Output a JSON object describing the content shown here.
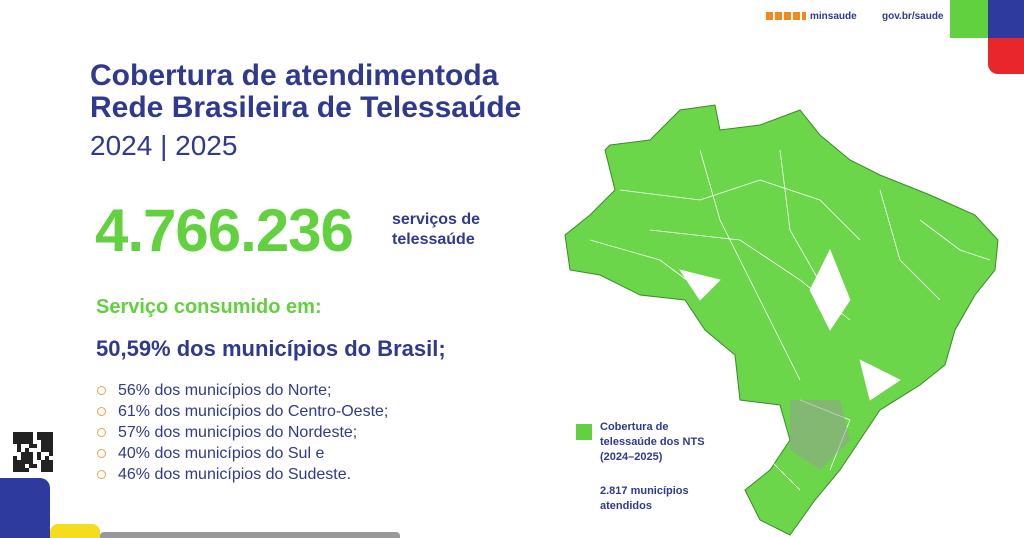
{
  "header": {
    "brand": "minsaude",
    "gov": "gov.br/saude"
  },
  "title": {
    "lines": [
      "Cobertura de atendimentoda",
      "Rede Brasileira de Telessaúde"
    ],
    "period": "2024 | 2025"
  },
  "highlight": {
    "number": "4.766.236",
    "caption": [
      "serviços de",
      "telessaúde"
    ]
  },
  "section": {
    "heading": "Serviço consumido em:",
    "total": "50,59% dos municípios do Brasil;",
    "items": [
      "56% dos municípios do Norte;",
      "61% dos municípios do Centro-Oeste;",
      "57% dos municípios do Nordeste;",
      "40% dos municípios do Sul e",
      "46% dos municípios do Sudeste."
    ]
  },
  "legend": {
    "label": [
      "Cobertura de",
      "telessaúde dos NTS",
      "(2024–2025)"
    ],
    "note": [
      "2.817 municípios",
      "atendidos"
    ]
  }
}
